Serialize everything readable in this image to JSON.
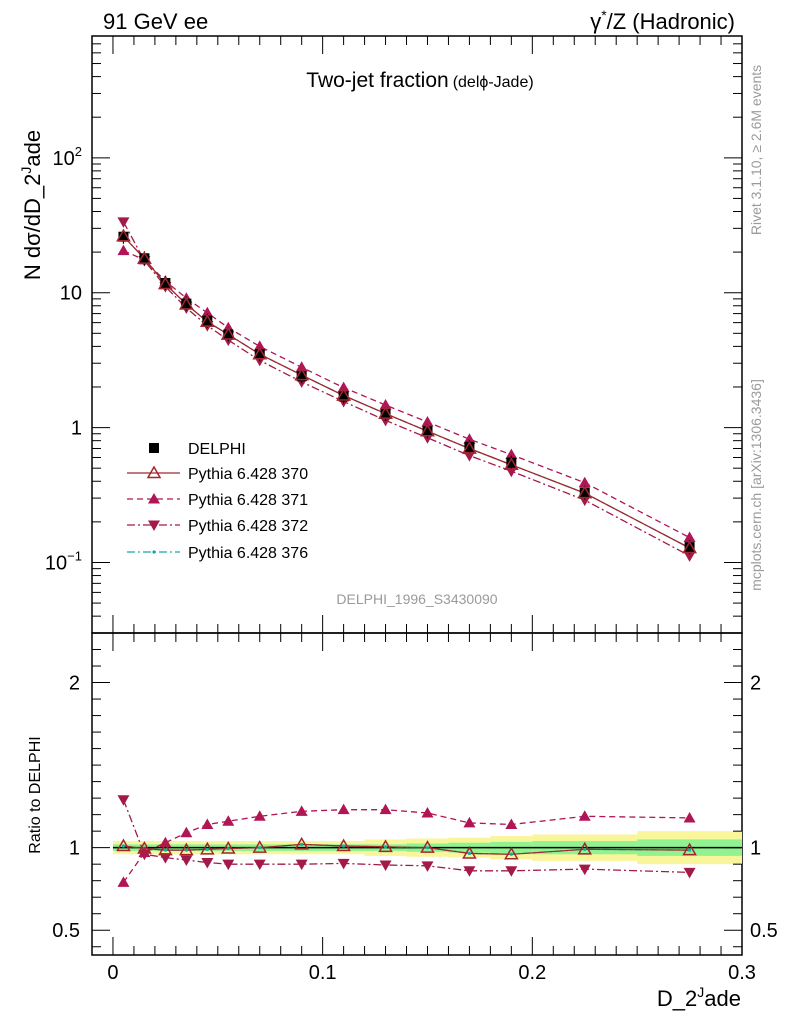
{
  "header": {
    "left": "91 GeV ee",
    "right_prefix": "γ",
    "right_sup": "*",
    "right_suffix": "/Z (Hadronic)"
  },
  "side_labels": {
    "rivet": "Rivet 3.1.10, ≥ 2.6M events",
    "mcplots": "mcplots.cern.ch [arXiv:1306.3436]"
  },
  "analysis_id": "DELPHI_1996_S3430090",
  "plot_title": {
    "main": "Two-jet fraction",
    "sub": "(delϕ-Jade)"
  },
  "y_label_main": {
    "base": "N dσ/dD_2",
    "sup": "J",
    "tail": "ade"
  },
  "y_label_ratio": "Ratio to DELPHI",
  "x_label": {
    "base": "D_2",
    "sup": "J",
    "tail": "ade"
  },
  "colors": {
    "data": "#000000",
    "mc370": "#a0282d",
    "mc371": "#b01556",
    "mc372": "#a31a4a",
    "mc376": "#1ba8a8",
    "band_inner": "#90f390",
    "band_outer": "#f8f59a"
  },
  "chart_data": [
    {
      "type": "scatter",
      "panel": "main",
      "log_y": true,
      "xlim": [
        -0.01,
        0.3
      ],
      "ylim": [
        0.03,
        800
      ],
      "y_ticks": [
        {
          "value": 0.1,
          "base": "10",
          "exp": "−1"
        },
        {
          "value": 1,
          "base": "1",
          "exp": ""
        },
        {
          "value": 10,
          "base": "10",
          "exp": ""
        },
        {
          "value": 100,
          "base": "10",
          "exp": "2"
        }
      ],
      "x": [
        0.005,
        0.015,
        0.025,
        0.035,
        0.045,
        0.055,
        0.07,
        0.09,
        0.11,
        0.13,
        0.15,
        0.17,
        0.19,
        0.225,
        0.275
      ],
      "series": [
        {
          "name": "DELPHI",
          "marker": "square",
          "colorKey": "data",
          "values": [
            26.0,
            18.0,
            11.8,
            8.3,
            6.2,
            4.9,
            3.5,
            2.4,
            1.7,
            1.26,
            0.94,
            0.72,
            0.55,
            0.33,
            0.13
          ]
        },
        {
          "name": "Pythia 6.428 370",
          "marker": "triangle-open",
          "colorKey": "mc370",
          "dash": "",
          "values": [
            26.2,
            17.9,
            11.6,
            8.2,
            6.1,
            4.9,
            3.5,
            2.45,
            1.73,
            1.27,
            0.94,
            0.7,
            0.53,
            0.327,
            0.128
          ]
        },
        {
          "name": "Pythia 6.428 371",
          "marker": "triangle-up",
          "colorKey": "mc371",
          "dash": "6,4",
          "values": [
            20.5,
            17.5,
            12.2,
            9.1,
            7.1,
            5.5,
            4.0,
            2.8,
            1.98,
            1.47,
            1.1,
            0.82,
            0.63,
            0.39,
            0.153
          ]
        },
        {
          "name": "Pythia 6.428 372",
          "marker": "triangle-down",
          "colorKey": "mc372",
          "dash": "8,3,2,3",
          "values": [
            33.5,
            17.3,
            11.1,
            7.7,
            5.7,
            4.45,
            3.15,
            2.18,
            1.56,
            1.13,
            0.84,
            0.62,
            0.475,
            0.29,
            0.112
          ]
        },
        {
          "name": "Pythia 6.428 376",
          "marker": "dot",
          "colorKey": "mc376",
          "dash": "8,3,2,3",
          "values": [
            26.2,
            17.9,
            11.6,
            8.2,
            6.1,
            4.9,
            3.5,
            2.45,
            1.73,
            1.27,
            0.94,
            0.7,
            0.53,
            0.327,
            0.128
          ]
        }
      ]
    },
    {
      "type": "scatter",
      "panel": "ratio",
      "xlim": [
        -0.01,
        0.3
      ],
      "ylim": [
        0.35,
        2.3
      ],
      "y_ticks": [
        {
          "value": 0.5,
          "label": "0.5"
        },
        {
          "value": 1,
          "label": "1"
        },
        {
          "value": 2,
          "label": "2"
        }
      ],
      "x_ticks": [
        {
          "value": 0,
          "label": "0"
        },
        {
          "value": 0.1,
          "label": "0.1"
        },
        {
          "value": 0.2,
          "label": "0.2"
        },
        {
          "value": 0.3,
          "label": "0.3"
        }
      ],
      "x": [
        0.005,
        0.015,
        0.025,
        0.035,
        0.045,
        0.055,
        0.07,
        0.09,
        0.11,
        0.13,
        0.15,
        0.17,
        0.19,
        0.225,
        0.275
      ],
      "bands": {
        "edges": [
          0,
          0.01,
          0.02,
          0.03,
          0.04,
          0.05,
          0.06,
          0.08,
          0.1,
          0.12,
          0.14,
          0.16,
          0.18,
          0.2,
          0.25,
          0.3
        ],
        "inner": [
          0.02,
          0.02,
          0.02,
          0.02,
          0.02,
          0.02,
          0.02,
          0.02,
          0.02,
          0.02,
          0.025,
          0.03,
          0.035,
          0.04,
          0.05
        ],
        "outer": [
          0.04,
          0.04,
          0.04,
          0.04,
          0.04,
          0.04,
          0.04,
          0.04,
          0.04,
          0.05,
          0.055,
          0.06,
          0.07,
          0.08,
          0.1
        ]
      },
      "series": [
        {
          "name": "Pythia 6.428 370",
          "marker": "triangle-open",
          "colorKey": "mc370",
          "dash": "",
          "values": [
            1.01,
            0.995,
            0.985,
            0.985,
            0.99,
            0.995,
            1.0,
            1.02,
            1.01,
            1.005,
            1.0,
            0.965,
            0.96,
            0.99,
            0.985
          ]
        },
        {
          "name": "Pythia 6.428 371",
          "marker": "triangle-up",
          "colorKey": "mc371",
          "dash": "6,4",
          "values": [
            0.79,
            0.97,
            1.03,
            1.09,
            1.14,
            1.16,
            1.19,
            1.22,
            1.23,
            1.23,
            1.21,
            1.15,
            1.14,
            1.19,
            1.18
          ]
        },
        {
          "name": "Pythia 6.428 372",
          "marker": "triangle-down",
          "colorKey": "mc372",
          "dash": "8,3,2,3",
          "values": [
            1.29,
            0.96,
            0.94,
            0.925,
            0.91,
            0.9,
            0.9,
            0.9,
            0.905,
            0.895,
            0.89,
            0.86,
            0.86,
            0.87,
            0.85
          ]
        },
        {
          "name": "Pythia 6.428 376",
          "marker": "dot",
          "colorKey": "mc376",
          "dash": "8,3,2,3",
          "values": [
            1.01,
            0.995,
            0.985,
            0.985,
            0.99,
            0.995,
            1.0,
            1.02,
            1.01,
            1.005,
            1.0,
            0.965,
            0.96,
            0.99,
            0.985
          ]
        }
      ]
    }
  ]
}
